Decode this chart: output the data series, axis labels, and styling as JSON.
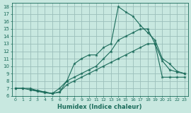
{
  "xlabel": "Humidex (Indice chaleur)",
  "background_color": "#c8e8e0",
  "grid_color": "#9bbfba",
  "line_color": "#1a6b5a",
  "xlim": [
    -0.5,
    23.5
  ],
  "ylim": [
    6,
    18.5
  ],
  "xticks": [
    0,
    1,
    2,
    3,
    4,
    5,
    6,
    7,
    8,
    9,
    10,
    11,
    12,
    13,
    14,
    15,
    16,
    17,
    18,
    19,
    20,
    21,
    22,
    23
  ],
  "yticks": [
    6,
    7,
    8,
    9,
    10,
    11,
    12,
    13,
    14,
    15,
    16,
    17,
    18
  ],
  "series": [
    {
      "x": [
        0,
        1,
        2,
        3,
        4,
        5,
        6,
        7,
        8,
        9,
        10,
        11,
        12,
        13,
        14,
        15,
        16,
        17,
        18,
        19,
        20,
        21,
        22,
        23
      ],
      "y": [
        7,
        7,
        7,
        6.7,
        6.5,
        6.3,
        6.5,
        7.5,
        8,
        8.5,
        9,
        9.5,
        10,
        10.5,
        11,
        11.5,
        12,
        12.5,
        13,
        13,
        8.5,
        8.5,
        8.5,
        8.5
      ]
    },
    {
      "x": [
        0,
        1,
        2,
        3,
        4,
        5,
        6,
        7,
        8,
        9,
        10,
        11,
        12,
        13,
        14,
        15,
        16,
        17,
        18,
        19,
        20,
        21,
        22,
        23
      ],
      "y": [
        7,
        7,
        6.8,
        6.7,
        6.5,
        6.3,
        6.5,
        8,
        8.5,
        9,
        9.5,
        10,
        11,
        12,
        13.5,
        14,
        14.5,
        15,
        15,
        13,
        10.7,
        9.5,
        9.2,
        9
      ]
    },
    {
      "x": [
        2,
        3,
        4,
        5,
        6,
        7,
        8,
        9,
        10,
        11,
        12,
        13,
        14,
        15,
        16,
        17,
        18,
        19,
        20,
        21,
        22,
        23
      ],
      "y": [
        6.8,
        6.6,
        6.4,
        6.3,
        7,
        8,
        10.3,
        11,
        11.5,
        11.5,
        12.5,
        13,
        18,
        17.3,
        16.7,
        15.5,
        14.5,
        13.5,
        11,
        10.3,
        9.3,
        9
      ]
    }
  ]
}
